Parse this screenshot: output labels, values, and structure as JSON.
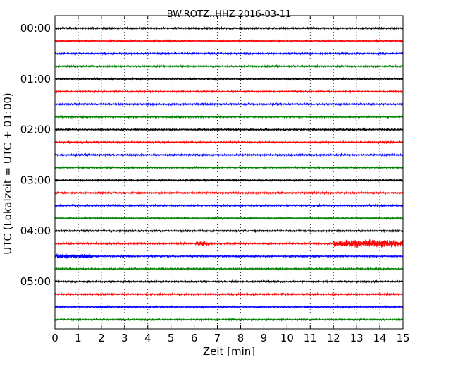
{
  "chart_data": {
    "type": "line",
    "chart_kind": "dayplot",
    "title": "BW.ROTZ..HHZ 2016-03-11",
    "xlabel": "Zeit  [min]",
    "ylabel": "UTC (Lokalzeit = UTC + 01:00)",
    "xlim": [
      0,
      15
    ],
    "x_ticks": [
      "0",
      "1",
      "2",
      "3",
      "4",
      "5",
      "6",
      "7",
      "8",
      "9",
      "10",
      "11",
      "12",
      "13",
      "14",
      "15"
    ],
    "y_ticks": [
      "00:00",
      "01:00",
      "02:00",
      "03:00",
      "04:00",
      "05:00"
    ],
    "line_start_times": [
      "00:00",
      "00:15",
      "00:30",
      "00:45",
      "01:00",
      "01:15",
      "01:30",
      "01:45",
      "02:00",
      "02:15",
      "02:30",
      "02:45",
      "03:00",
      "03:15",
      "03:30",
      "03:45",
      "04:00",
      "04:15",
      "04:30",
      "04:45",
      "05:00",
      "05:15",
      "05:30",
      "05:45"
    ],
    "trace_colors": [
      "#000000",
      "#ff0000",
      "#0000ff",
      "#008000"
    ],
    "grid": "vertical-dotted",
    "events": [
      {
        "trace_start": "04:15",
        "from_min": 6.1,
        "to_min": 6.6,
        "level": "medium"
      },
      {
        "trace_start": "04:15",
        "from_min": 12.0,
        "to_min": 15.0,
        "level": "strong"
      },
      {
        "trace_start": "04:30",
        "from_min": 0.0,
        "to_min": 1.6,
        "level": "medium"
      },
      {
        "trace_start": "04:30",
        "from_min": 2.8,
        "to_min": 3.1,
        "level": "weak"
      }
    ]
  }
}
